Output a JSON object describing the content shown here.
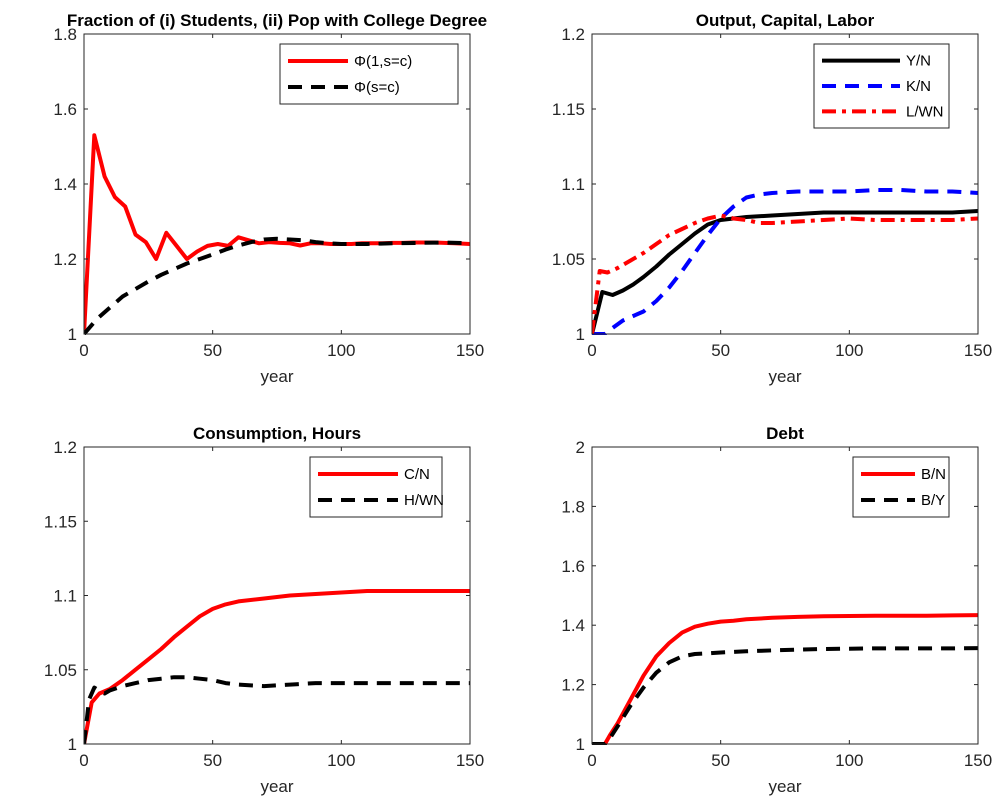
{
  "chart_data": [
    {
      "type": "line",
      "title": "Fraction of (i) Students, (ii) Pop with College Degree",
      "xlabel": "year",
      "ylabel": "",
      "xlim": [
        0,
        150
      ],
      "ylim": [
        1,
        1.8
      ],
      "xticks": [
        0,
        50,
        100,
        150
      ],
      "yticks": [
        1,
        1.2,
        1.4,
        1.6,
        1.8
      ],
      "grid": false,
      "legend_position": "top-right",
      "series": [
        {
          "name": "Φ(1,s=c)",
          "color": "#ff0000",
          "style": "solid",
          "x": [
            0,
            4,
            8,
            12,
            16,
            20,
            24,
            28,
            32,
            36,
            40,
            44,
            48,
            52,
            56,
            60,
            64,
            68,
            72,
            76,
            80,
            84,
            88,
            92,
            96,
            100,
            104,
            108,
            112,
            116,
            120,
            124,
            128,
            132,
            136,
            140,
            144,
            150
          ],
          "y": [
            1.0,
            1.53,
            1.42,
            1.365,
            1.34,
            1.265,
            1.245,
            1.2,
            1.27,
            1.235,
            1.2,
            1.22,
            1.235,
            1.24,
            1.235,
            1.258,
            1.25,
            1.242,
            1.245,
            1.243,
            1.242,
            1.236,
            1.242,
            1.242,
            1.24,
            1.24,
            1.24,
            1.242,
            1.242,
            1.242,
            1.243,
            1.243,
            1.244,
            1.244,
            1.244,
            1.243,
            1.242,
            1.24
          ]
        },
        {
          "name": "Φ(s=c)",
          "color": "#000000",
          "style": "dashed",
          "x": [
            0,
            5,
            10,
            15,
            20,
            25,
            30,
            35,
            40,
            45,
            50,
            55,
            60,
            65,
            70,
            75,
            80,
            85,
            90,
            95,
            100,
            110,
            120,
            130,
            140,
            150
          ],
          "y": [
            1.0,
            1.04,
            1.07,
            1.1,
            1.12,
            1.14,
            1.158,
            1.173,
            1.188,
            1.2,
            1.212,
            1.225,
            1.236,
            1.245,
            1.252,
            1.254,
            1.252,
            1.25,
            1.245,
            1.242,
            1.24,
            1.24,
            1.242,
            1.243,
            1.244,
            1.242
          ]
        }
      ]
    },
    {
      "type": "line",
      "title": "Output, Capital, Labor",
      "xlabel": "year",
      "ylabel": "",
      "xlim": [
        0,
        150
      ],
      "ylim": [
        1,
        1.2
      ],
      "xticks": [
        0,
        50,
        100,
        150
      ],
      "yticks": [
        1,
        1.05,
        1.1,
        1.15,
        1.2
      ],
      "grid": false,
      "legend_position": "top-right",
      "series": [
        {
          "name": "Y/N",
          "color": "#000000",
          "style": "solid",
          "x": [
            0,
            4,
            8,
            12,
            16,
            20,
            25,
            30,
            35,
            40,
            45,
            50,
            55,
            60,
            70,
            80,
            90,
            100,
            110,
            120,
            130,
            140,
            150
          ],
          "y": [
            1.0,
            1.028,
            1.026,
            1.029,
            1.033,
            1.038,
            1.045,
            1.053,
            1.06,
            1.067,
            1.073,
            1.076,
            1.077,
            1.078,
            1.079,
            1.08,
            1.081,
            1.081,
            1.081,
            1.081,
            1.081,
            1.081,
            1.082
          ]
        },
        {
          "name": "K/N",
          "color": "#0000ff",
          "style": "dashed",
          "x": [
            0,
            5,
            8,
            12,
            16,
            20,
            25,
            30,
            35,
            40,
            45,
            50,
            55,
            60,
            65,
            70,
            80,
            90,
            100,
            110,
            120,
            130,
            140,
            150
          ],
          "y": [
            1.0,
            1.0,
            1.004,
            1.009,
            1.012,
            1.015,
            1.022,
            1.031,
            1.042,
            1.054,
            1.066,
            1.077,
            1.085,
            1.091,
            1.093,
            1.094,
            1.095,
            1.095,
            1.095,
            1.096,
            1.096,
            1.095,
            1.095,
            1.094
          ]
        },
        {
          "name": "L/WN",
          "color": "#ff0000",
          "style": "dashdot",
          "x": [
            0,
            3,
            6,
            10,
            15,
            20,
            25,
            30,
            35,
            40,
            45,
            50,
            55,
            60,
            65,
            70,
            80,
            90,
            100,
            110,
            120,
            130,
            140,
            150
          ],
          "y": [
            1.0,
            1.042,
            1.041,
            1.044,
            1.049,
            1.054,
            1.06,
            1.066,
            1.07,
            1.074,
            1.077,
            1.079,
            1.077,
            1.076,
            1.074,
            1.074,
            1.075,
            1.076,
            1.077,
            1.076,
            1.076,
            1.076,
            1.076,
            1.077
          ]
        }
      ]
    },
    {
      "type": "line",
      "title": "Consumption, Hours",
      "xlabel": "year",
      "ylabel": "",
      "xlim": [
        0,
        150
      ],
      "ylim": [
        1,
        1.2
      ],
      "xticks": [
        0,
        50,
        100,
        150
      ],
      "yticks": [
        1,
        1.05,
        1.1,
        1.15,
        1.2
      ],
      "grid": false,
      "legend_position": "top-right",
      "series": [
        {
          "name": "C/N",
          "color": "#ff0000",
          "style": "solid",
          "x": [
            0,
            3,
            6,
            10,
            15,
            20,
            25,
            30,
            35,
            40,
            45,
            50,
            55,
            60,
            70,
            80,
            90,
            100,
            110,
            120,
            130,
            140,
            150
          ],
          "y": [
            1.0,
            1.028,
            1.034,
            1.037,
            1.043,
            1.05,
            1.057,
            1.064,
            1.072,
            1.079,
            1.086,
            1.091,
            1.094,
            1.096,
            1.098,
            1.1,
            1.101,
            1.102,
            1.103,
            1.103,
            1.103,
            1.103,
            1.103
          ]
        },
        {
          "name": "H/WN",
          "color": "#000000",
          "style": "dashed",
          "x": [
            0,
            2,
            4,
            6,
            8,
            10,
            15,
            20,
            25,
            30,
            35,
            40,
            45,
            50,
            55,
            60,
            70,
            80,
            90,
            100,
            110,
            120,
            130,
            140,
            150
          ],
          "y": [
            1.0,
            1.03,
            1.038,
            1.036,
            1.034,
            1.036,
            1.039,
            1.041,
            1.043,
            1.044,
            1.045,
            1.045,
            1.044,
            1.043,
            1.041,
            1.04,
            1.039,
            1.04,
            1.041,
            1.041,
            1.041,
            1.041,
            1.041,
            1.041,
            1.041
          ]
        }
      ]
    },
    {
      "type": "line",
      "title": "Debt",
      "xlabel": "year",
      "ylabel": "",
      "xlim": [
        0,
        150
      ],
      "ylim": [
        1,
        2
      ],
      "xticks": [
        0,
        50,
        100,
        150
      ],
      "yticks": [
        1,
        1.2,
        1.4,
        1.6,
        1.8,
        2
      ],
      "grid": false,
      "legend_position": "top-right",
      "series": [
        {
          "name": "B/N",
          "color": "#ff0000",
          "style": "solid",
          "x": [
            0,
            5,
            7,
            10,
            15,
            20,
            25,
            30,
            35,
            40,
            45,
            50,
            55,
            60,
            70,
            80,
            90,
            100,
            110,
            120,
            130,
            140,
            150
          ],
          "y": [
            1.0,
            1.0,
            1.03,
            1.07,
            1.15,
            1.23,
            1.295,
            1.34,
            1.375,
            1.395,
            1.405,
            1.412,
            1.415,
            1.42,
            1.425,
            1.428,
            1.43,
            1.431,
            1.432,
            1.432,
            1.432,
            1.433,
            1.434
          ]
        },
        {
          "name": "B/Y",
          "color": "#000000",
          "style": "dashed",
          "x": [
            0,
            5,
            7,
            10,
            15,
            20,
            25,
            30,
            35,
            40,
            45,
            50,
            55,
            60,
            70,
            80,
            90,
            100,
            110,
            120,
            130,
            140,
            150
          ],
          "y": [
            1.0,
            1.0,
            1.02,
            1.06,
            1.13,
            1.19,
            1.24,
            1.275,
            1.295,
            1.303,
            1.305,
            1.308,
            1.31,
            1.312,
            1.315,
            1.318,
            1.32,
            1.321,
            1.322,
            1.322,
            1.322,
            1.322,
            1.323
          ]
        }
      ]
    }
  ]
}
